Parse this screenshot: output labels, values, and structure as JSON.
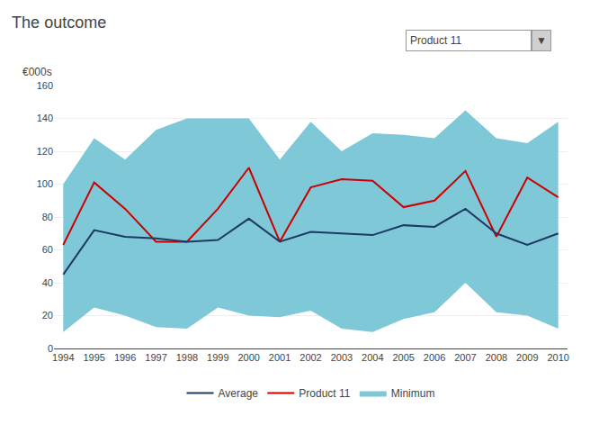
{
  "chart_data": {
    "type": "line",
    "title": "The outcome",
    "ylabel": "€000s",
    "annotations": [
      "Product 11",
      "▼"
    ],
    "x": [
      1994,
      1995,
      1996,
      1997,
      1998,
      1999,
      2000,
      2001,
      2002,
      2003,
      2004,
      2005,
      2006,
      2007,
      2008,
      2009,
      2010
    ],
    "series": [
      {
        "name": "Minimum",
        "type": "band",
        "color": "#7EC8D8",
        "values": [
          10,
          25,
          20,
          13,
          12,
          25,
          20,
          19,
          23,
          12,
          10,
          18,
          22,
          40,
          22,
          20,
          12
        ],
        "upper": [
          100,
          128,
          115,
          133,
          140,
          140,
          140,
          115,
          138,
          120,
          131,
          130,
          128,
          145,
          128,
          125,
          138
        ]
      },
      {
        "name": "Product 11",
        "type": "line",
        "color": "#CC0000",
        "values": [
          63,
          101,
          85,
          65,
          65,
          85,
          110,
          65,
          98,
          103,
          102,
          86,
          90,
          108,
          68,
          104,
          92
        ]
      },
      {
        "name": "Average",
        "type": "line",
        "color": "#1F3864",
        "values": [
          45,
          72,
          68,
          67,
          65,
          66,
          79,
          65,
          71,
          70,
          69,
          75,
          74,
          85,
          70,
          63,
          70
        ]
      }
    ],
    "xlim": [
      1993.7,
      2010.3
    ],
    "xticks": [
      1994,
      1995,
      1996,
      1997,
      1998,
      1999,
      2000,
      2001,
      2002,
      2003,
      2004,
      2005,
      2006,
      2007,
      2008,
      2009,
      2010
    ],
    "ylim": [
      0,
      160
    ],
    "yticks": [
      0,
      20,
      40,
      60,
      80,
      100,
      120,
      140,
      160
    ],
    "grid": "y",
    "legend": "bottom"
  }
}
